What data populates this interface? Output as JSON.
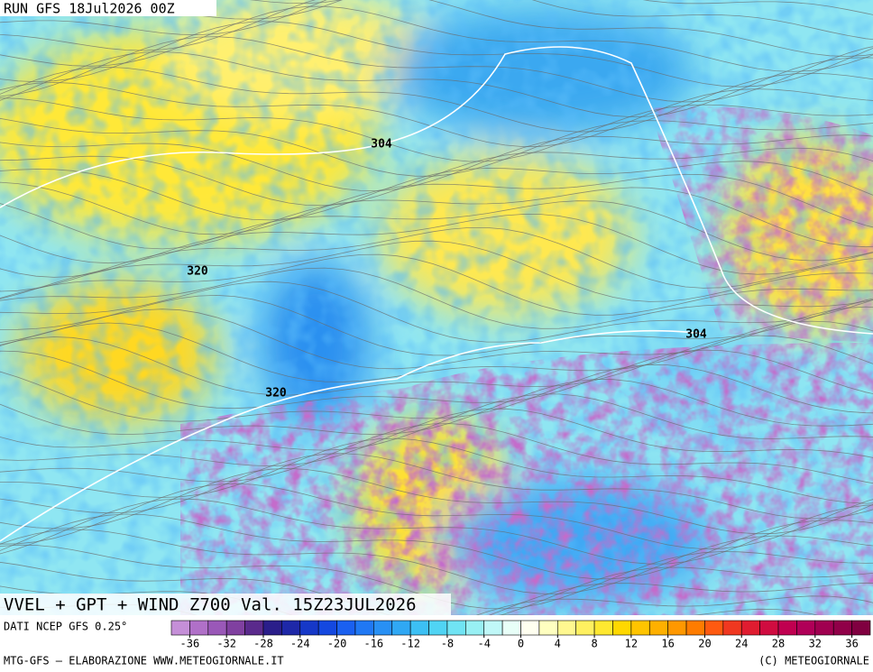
{
  "header": {
    "run": "RUN GFS 18Jul2026 00Z"
  },
  "map": {
    "contour_labels": [
      "304",
      "320",
      "320",
      "304"
    ]
  },
  "title": "VVEL + GPT + WIND Z700 Val. 15Z23JUL2026",
  "source": "DATI NCEP GFS 0.25°",
  "colorbar": {
    "colors": [
      "#c58fd8",
      "#b070c8",
      "#9a58b8",
      "#8040a0",
      "#5a2a8c",
      "#2a1e8a",
      "#1e28a8",
      "#1638c8",
      "#1448e0",
      "#1a60f0",
      "#2078f4",
      "#2890f4",
      "#30a8f4",
      "#3cc0f4",
      "#50d4f4",
      "#70e4f4",
      "#98f0f4",
      "#c0f8f8",
      "#e8fff8",
      "#fffff0",
      "#ffffc0",
      "#fff890",
      "#fff060",
      "#ffe830",
      "#ffd800",
      "#ffc400",
      "#ffb000",
      "#ff9800",
      "#ff7c00",
      "#ff5a10",
      "#f03820",
      "#e01c30",
      "#d00c40",
      "#c00050",
      "#b00058",
      "#a00050",
      "#900048",
      "#800040"
    ],
    "ticks": [
      -36,
      -32,
      -28,
      -24,
      -20,
      -16,
      -12,
      -8,
      -4,
      0,
      4,
      8,
      12,
      16,
      20,
      24,
      28,
      32,
      36
    ]
  },
  "footer": {
    "left": "MTG-GFS — ELABORAZIONE WWW.METEOGIORNALE.IT",
    "right": "(C) METEOGIORNALE"
  }
}
